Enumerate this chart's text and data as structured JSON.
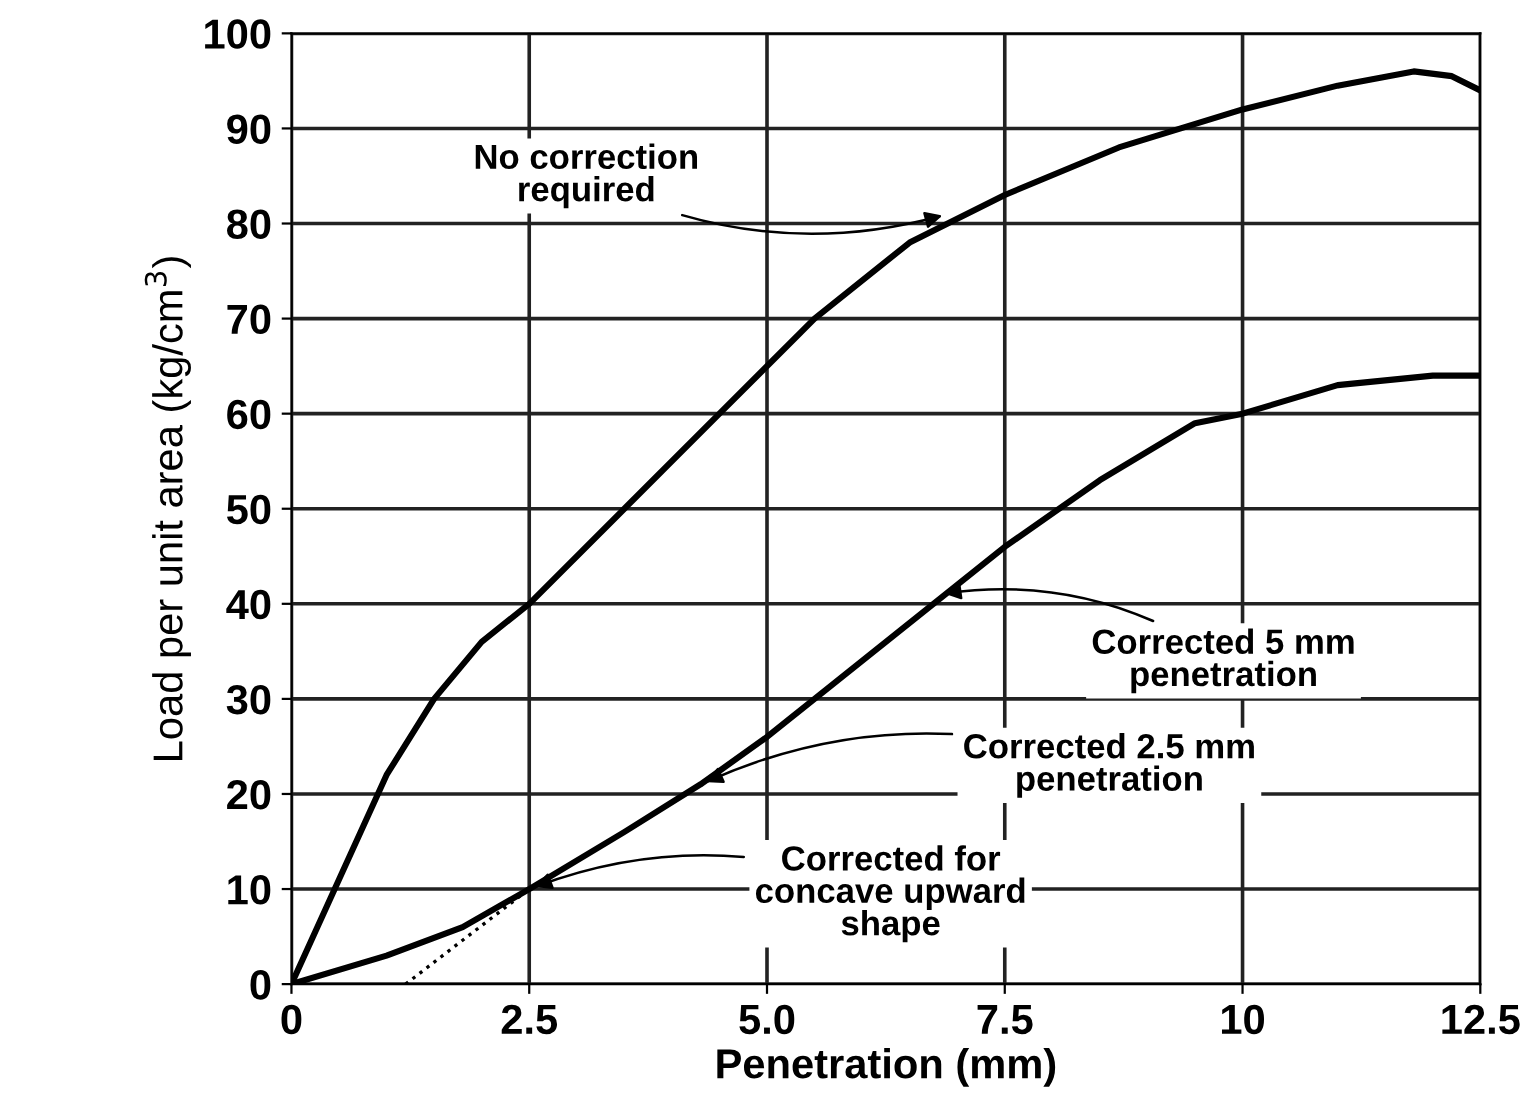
{
  "chart_data": {
    "type": "line",
    "xlabel": "Penetration (mm)",
    "ylabel": "Load per unit area (kg/cm$^{3}$)",
    "xlim": [
      0,
      12.5
    ],
    "ylim": [
      0,
      100
    ],
    "xticks": [
      0,
      2.5,
      {
        "value": 5,
        "label": "5.0"
      },
      7.5,
      10,
      12.5
    ],
    "yticks": [
      0,
      10,
      20,
      30,
      40,
      50,
      60,
      70,
      80,
      90,
      100
    ],
    "grid": true,
    "marker": "none",
    "series": [
      {
        "color": "#000000",
        "line_style": "solid",
        "x": [
          0,
          0.5,
          1,
          1.5,
          2,
          2.5,
          3.5,
          4.5,
          5.5,
          6.5,
          7.5,
          8.7,
          10,
          11,
          11.8,
          12.2,
          12.5
        ],
        "values": [
          0,
          11,
          22,
          30,
          36,
          40,
          50,
          60,
          70,
          78,
          83,
          88,
          92,
          94.5,
          96,
          95.5,
          94
        ]
      },
      {
        "color": "#000000",
        "line_style": "solid",
        "x": [
          0,
          1,
          1.8,
          2.5,
          3.5,
          4.3,
          5,
          6,
          7,
          7.5,
          8.5,
          9.5,
          10,
          11,
          12,
          12.5
        ],
        "values": [
          0,
          3,
          6,
          10,
          16,
          21,
          26,
          34,
          42,
          46,
          53,
          59,
          60,
          63,
          64,
          64
        ]
      },
      {
        "type": "line",
        "color": "#000000",
        "line_style": "dotted",
        "x": [
          1.2,
          2.5
        ],
        "values": [
          0,
          10
        ]
      }
    ],
    "annotations": [
      {
        "text": "No correction\nrequired",
        "x": 6.9,
        "y": 81
      },
      {
        "text": "Corrected 5 mm\npenetration",
        "x": 6.8,
        "y": 41
      },
      {
        "text": "Corrected 2.5 mm\npenetration",
        "x": 4.3,
        "y": 21
      },
      {
        "text": "Corrected for\nconcave upward\nshape",
        "x": 2.5,
        "y": 10
      }
    ]
  }
}
